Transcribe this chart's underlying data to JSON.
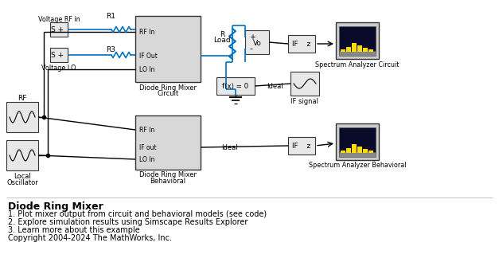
{
  "bg_color": "#ffffff",
  "blue": "#0070c0",
  "black": "#000000",
  "yellow": "#ffdd00",
  "title": "Diode Ring Mixer",
  "lines": [
    "1. Plot mixer output from circuit and behavioral models (see code)",
    "2. Explore simulation results using Simscape Results Explorer",
    "3. Learn more about this example",
    "Copyright 2004-2024 The MathWorks, Inc."
  ]
}
